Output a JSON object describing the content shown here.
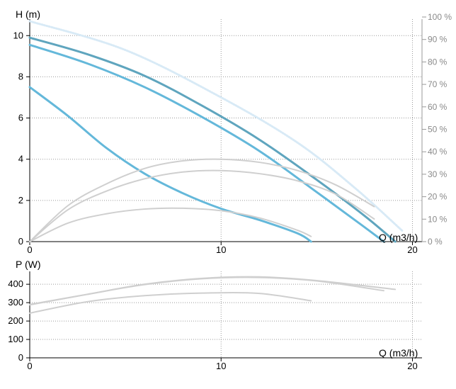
{
  "chart_data": [
    {
      "type": "line",
      "ylabel": "H (m)",
      "xlabel": "Q (m3/h)",
      "xlim": [
        0,
        20.5
      ],
      "ylim": [
        0,
        10.8
      ],
      "x_ticks": [
        "0",
        "10",
        "20"
      ],
      "y_ticks": [
        "0",
        "2",
        "4",
        "6",
        "8",
        "10"
      ],
      "y2_ticks": [
        "0 %",
        "10 %",
        "20 %",
        "30 %",
        "40 %",
        "50 %",
        "60 %",
        "70 %",
        "80 %",
        "90 %",
        "100 %"
      ],
      "y2lim": [
        0,
        100
      ],
      "grid": true,
      "series": [
        {
          "color": "#d8eaf6",
          "style": "dotted",
          "x": [
            0,
            5,
            10,
            14,
            17,
            19.5
          ],
          "y": [
            10.7,
            9.3,
            7.0,
            4.8,
            2.6,
            0.5
          ]
        },
        {
          "color": "#5fa5be",
          "x": [
            0,
            3,
            6,
            9,
            12,
            15,
            17.5,
            19.1
          ],
          "y": [
            9.9,
            9.1,
            8.05,
            6.6,
            4.95,
            3.0,
            1.25,
            0
          ]
        },
        {
          "color": "#64b8da",
          "x": [
            0,
            3,
            6,
            9,
            12,
            15,
            17.5,
            18.5
          ],
          "y": [
            9.55,
            8.65,
            7.5,
            6.05,
            4.4,
            2.4,
            0.7,
            0
          ]
        },
        {
          "color": "#64b8da",
          "x": [
            0,
            2,
            4,
            6,
            8,
            10,
            12,
            14,
            14.7
          ],
          "y": [
            7.5,
            6.1,
            4.55,
            3.3,
            2.35,
            1.6,
            1.05,
            0.4,
            0
          ]
        },
        {
          "color": "#cfcfcf",
          "x": [
            0,
            2,
            4,
            6,
            8,
            10,
            12,
            14,
            16,
            18
          ],
          "y": [
            0,
            1.75,
            2.8,
            3.55,
            3.92,
            4.0,
            3.85,
            3.45,
            2.75,
            1.7
          ]
        },
        {
          "color": "#cfcfcf",
          "x": [
            0,
            2,
            4,
            6,
            8,
            10,
            12,
            14,
            16,
            18
          ],
          "y": [
            0,
            1.55,
            2.45,
            3.05,
            3.38,
            3.45,
            3.3,
            2.95,
            2.3,
            1.1
          ]
        },
        {
          "color": "#cfcfcf",
          "x": [
            0,
            2,
            4,
            6,
            8,
            10,
            12,
            14,
            14.7
          ],
          "y": [
            0,
            0.9,
            1.35,
            1.58,
            1.62,
            1.5,
            1.15,
            0.55,
            0.25
          ]
        }
      ]
    },
    {
      "type": "line",
      "ylabel": "P (W)",
      "xlabel": "Q (m3/h)",
      "xlim": [
        0,
        20.5
      ],
      "ylim": [
        0,
        470
      ],
      "x_ticks": [
        "0",
        "10",
        "20"
      ],
      "y_ticks": [
        "0",
        "100",
        "200",
        "300",
        "400"
      ],
      "grid": true,
      "series": [
        {
          "color": "#cfcfcf",
          "x": [
            0,
            3,
            6,
            9,
            12,
            15,
            19.1
          ],
          "y": [
            290,
            345,
            400,
            432,
            440,
            420,
            372
          ]
        },
        {
          "color": "#cfcfcf",
          "x": [
            0,
            3,
            6,
            9,
            12,
            15,
            18.5
          ],
          "y": [
            288,
            345,
            398,
            430,
            437,
            418,
            365
          ]
        },
        {
          "color": "#cfcfcf",
          "x": [
            0,
            3,
            6,
            9,
            12,
            14.7
          ],
          "y": [
            243,
            305,
            338,
            352,
            350,
            310
          ]
        }
      ]
    }
  ]
}
